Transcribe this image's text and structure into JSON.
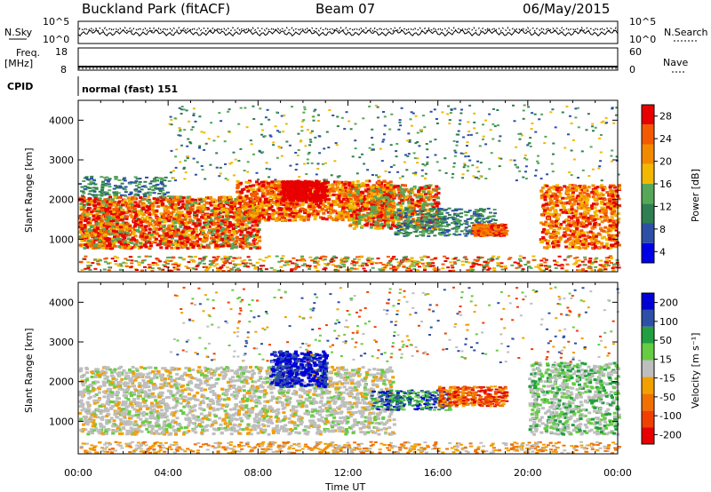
{
  "header": {
    "station": "Buckland Park (fitACF)",
    "beam": "Beam 07",
    "date": "06/May/2015"
  },
  "top_panel": {
    "left_label": "N.Sky",
    "right_label": "N.Search",
    "left_ticks": [
      "10^5",
      "10^0"
    ],
    "right_ticks": [
      "10^5",
      "10^0"
    ]
  },
  "freq_panel": {
    "left_label_line1": "Freq.",
    "left_label_line2": "[MHz]",
    "right_label": "Nave",
    "left_ticks": [
      "18",
      "8"
    ],
    "right_ticks": [
      "60",
      "0"
    ]
  },
  "cpid_panel": {
    "label": "CPID",
    "text": "normal (fast) 151"
  },
  "colors": {
    "power_scale": [
      "#0000e6",
      "#2d4fa6",
      "#2f7f50",
      "#56a757",
      "#f2b800",
      "#f28a00",
      "#f45a00",
      "#e80000"
    ],
    "velocity_scale": [
      "#0000d6",
      "#2d4fa6",
      "#22a040",
      "#66cc44",
      "#bebebe",
      "#f2a000",
      "#f07000",
      "#f04000",
      "#e60000"
    ]
  },
  "chart_data": [
    {
      "type": "heatmap",
      "title": "",
      "xlabel": "",
      "ylabel": "Slant Range [km]",
      "x_ticks": [
        "00:00",
        "04:00",
        "08:00",
        "12:00",
        "16:00",
        "20:00",
        "00:00"
      ],
      "y_ticks": [
        1000,
        2000,
        3000,
        4000
      ],
      "ylim": [
        180,
        4500
      ],
      "colorbar": {
        "label": "Power [dB]",
        "ticks": [
          4,
          8,
          12,
          16,
          20,
          24,
          28
        ],
        "range": [
          0,
          32
        ]
      }
    },
    {
      "type": "heatmap",
      "title": "",
      "xlabel": "Time UT",
      "ylabel": "Slant Range [km]",
      "x_ticks": [
        "00:00",
        "04:00",
        "08:00",
        "12:00",
        "16:00",
        "20:00",
        "00:00"
      ],
      "y_ticks": [
        1000,
        2000,
        3000,
        4000
      ],
      "ylim": [
        180,
        4500
      ],
      "colorbar": {
        "label": "Velocity [m s⁻¹]",
        "ticks": [
          "200",
          "100",
          "50",
          "15",
          "-15",
          "-50",
          "-100",
          "-200"
        ]
      }
    }
  ]
}
